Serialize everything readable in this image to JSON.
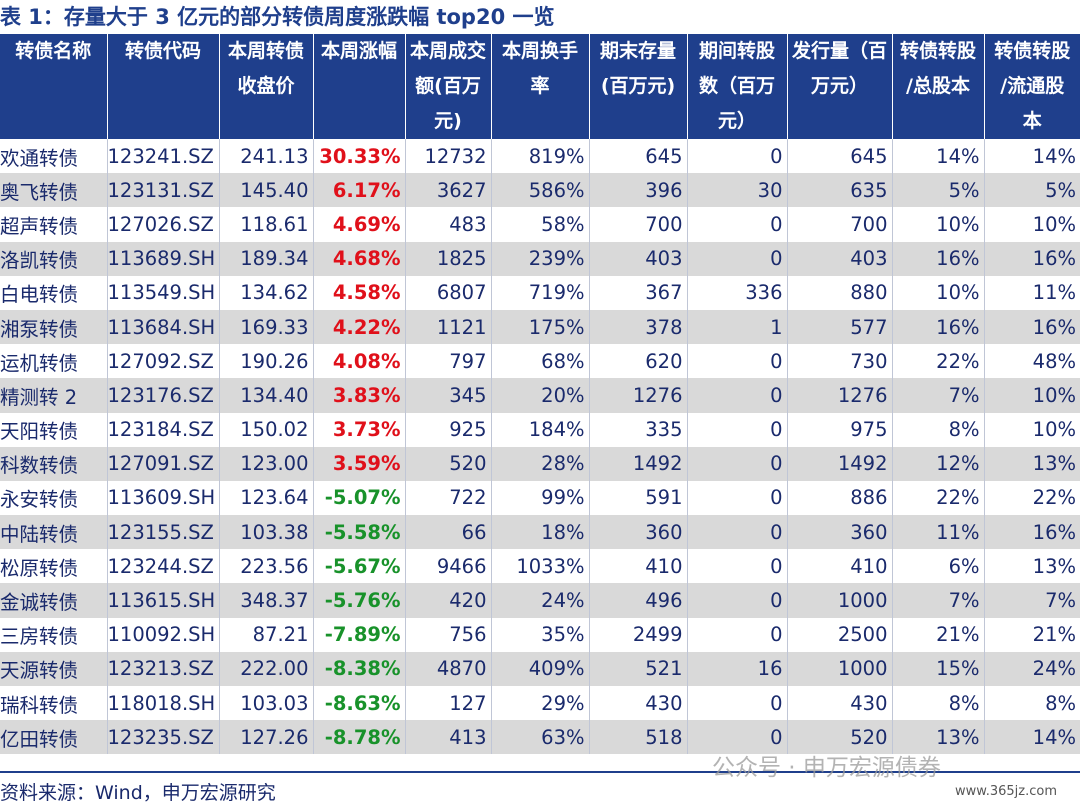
{
  "title": "表 1：存量大于 3 亿元的部分转债周度涨跌幅 top20 一览",
  "headers": [
    [
      "转债名称"
    ],
    [
      "转债代码"
    ],
    [
      "本周转债",
      "收盘价"
    ],
    [
      "本周涨幅"
    ],
    [
      "本周成交",
      "额(百万",
      "元)"
    ],
    [
      "本周换手",
      "率"
    ],
    [
      "期末存量",
      "(百万元)"
    ],
    [
      "期间转股",
      "数（百万",
      "元）"
    ],
    [
      "发行量（百",
      "万元）"
    ],
    [
      "转债转股",
      "/总股本"
    ],
    [
      "转债转股",
      "/流通股",
      "本"
    ]
  ],
  "rows": [
    {
      "name": "欢通转债",
      "code": "123241.SZ",
      "close": "241.13",
      "chg": "30.33%",
      "dir": "up",
      "vol": "12732",
      "turnover": "819%",
      "balance": "645",
      "converted": "0",
      "issue": "645",
      "total_ratio": "14%",
      "float_ratio": "14%"
    },
    {
      "name": "奥飞转债",
      "code": "123131.SZ",
      "close": "145.40",
      "chg": "6.17%",
      "dir": "up",
      "vol": "3627",
      "turnover": "586%",
      "balance": "396",
      "converted": "30",
      "issue": "635",
      "total_ratio": "5%",
      "float_ratio": "5%"
    },
    {
      "name": "超声转债",
      "code": "127026.SZ",
      "close": "118.61",
      "chg": "4.69%",
      "dir": "up",
      "vol": "483",
      "turnover": "58%",
      "balance": "700",
      "converted": "0",
      "issue": "700",
      "total_ratio": "10%",
      "float_ratio": "10%"
    },
    {
      "name": "洛凯转债",
      "code": "113689.SH",
      "close": "189.34",
      "chg": "4.68%",
      "dir": "up",
      "vol": "1825",
      "turnover": "239%",
      "balance": "403",
      "converted": "0",
      "issue": "403",
      "total_ratio": "16%",
      "float_ratio": "16%"
    },
    {
      "name": "白电转债",
      "code": "113549.SH",
      "close": "134.62",
      "chg": "4.58%",
      "dir": "up",
      "vol": "6807",
      "turnover": "719%",
      "balance": "367",
      "converted": "336",
      "issue": "880",
      "total_ratio": "10%",
      "float_ratio": "11%"
    },
    {
      "name": "湘泵转债",
      "code": "113684.SH",
      "close": "169.33",
      "chg": "4.22%",
      "dir": "up",
      "vol": "1121",
      "turnover": "175%",
      "balance": "378",
      "converted": "1",
      "issue": "577",
      "total_ratio": "16%",
      "float_ratio": "16%"
    },
    {
      "name": "运机转债",
      "code": "127092.SZ",
      "close": "190.26",
      "chg": "4.08%",
      "dir": "up",
      "vol": "797",
      "turnover": "68%",
      "balance": "620",
      "converted": "0",
      "issue": "730",
      "total_ratio": "22%",
      "float_ratio": "48%"
    },
    {
      "name": "精测转 2",
      "code": "123176.SZ",
      "close": "134.40",
      "chg": "3.83%",
      "dir": "up",
      "vol": "345",
      "turnover": "20%",
      "balance": "1276",
      "converted": "0",
      "issue": "1276",
      "total_ratio": "7%",
      "float_ratio": "10%"
    },
    {
      "name": "天阳转债",
      "code": "123184.SZ",
      "close": "150.02",
      "chg": "3.73%",
      "dir": "up",
      "vol": "925",
      "turnover": "184%",
      "balance": "335",
      "converted": "0",
      "issue": "975",
      "total_ratio": "8%",
      "float_ratio": "10%"
    },
    {
      "name": "科数转债",
      "code": "127091.SZ",
      "close": "123.00",
      "chg": "3.59%",
      "dir": "up",
      "vol": "520",
      "turnover": "28%",
      "balance": "1492",
      "converted": "0",
      "issue": "1492",
      "total_ratio": "12%",
      "float_ratio": "13%"
    },
    {
      "name": "永安转债",
      "code": "113609.SH",
      "close": "123.64",
      "chg": "-5.07%",
      "dir": "down",
      "vol": "722",
      "turnover": "99%",
      "balance": "591",
      "converted": "0",
      "issue": "886",
      "total_ratio": "22%",
      "float_ratio": "22%"
    },
    {
      "name": "中陆转债",
      "code": "123155.SZ",
      "close": "103.38",
      "chg": "-5.58%",
      "dir": "down",
      "vol": "66",
      "turnover": "18%",
      "balance": "360",
      "converted": "0",
      "issue": "360",
      "total_ratio": "11%",
      "float_ratio": "16%"
    },
    {
      "name": "松原转债",
      "code": "123244.SZ",
      "close": "223.56",
      "chg": "-5.67%",
      "dir": "down",
      "vol": "9466",
      "turnover": "1033%",
      "balance": "410",
      "converted": "0",
      "issue": "410",
      "total_ratio": "6%",
      "float_ratio": "13%"
    },
    {
      "name": "金诚转债",
      "code": "113615.SH",
      "close": "348.37",
      "chg": "-5.76%",
      "dir": "down",
      "vol": "420",
      "turnover": "24%",
      "balance": "496",
      "converted": "0",
      "issue": "1000",
      "total_ratio": "7%",
      "float_ratio": "7%"
    },
    {
      "name": "三房转债",
      "code": "110092.SH",
      "close": "87.21",
      "chg": "-7.89%",
      "dir": "down",
      "vol": "756",
      "turnover": "35%",
      "balance": "2499",
      "converted": "0",
      "issue": "2500",
      "total_ratio": "21%",
      "float_ratio": "21%"
    },
    {
      "name": "天源转债",
      "code": "123213.SZ",
      "close": "222.00",
      "chg": "-8.38%",
      "dir": "down",
      "vol": "4870",
      "turnover": "409%",
      "balance": "521",
      "converted": "16",
      "issue": "1000",
      "total_ratio": "15%",
      "float_ratio": "24%"
    },
    {
      "name": "瑞科转债",
      "code": "118018.SH",
      "close": "103.03",
      "chg": "-8.63%",
      "dir": "down",
      "vol": "127",
      "turnover": "29%",
      "balance": "430",
      "converted": "0",
      "issue": "430",
      "total_ratio": "8%",
      "float_ratio": "8%"
    },
    {
      "name": "亿田转债",
      "code": "123235.SZ",
      "close": "127.26",
      "chg": "-8.78%",
      "dir": "down",
      "vol": "413",
      "turnover": "63%",
      "balance": "518",
      "converted": "0",
      "issue": "520",
      "total_ratio": "13%",
      "float_ratio": "14%"
    }
  ],
  "source": "资料来源：Wind，申万宏源研究",
  "watermark": "公众号 · 申万宏源债券",
  "watermark_site": "www.365jz.com",
  "colors": {
    "header_bg": "#1f3f8c",
    "up": "#e0101a",
    "down": "#18922a",
    "stripe": "#d9d9d9"
  }
}
